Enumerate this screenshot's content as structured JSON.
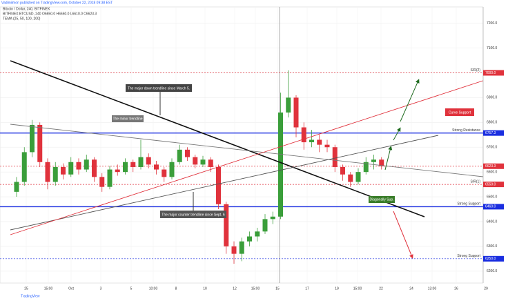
{
  "chart_data": {
    "type": "candlestick",
    "publisher": "Vadimilmon published on TradingView.com, October 22, 2018 09:38 EST",
    "title": "Bitcoin / Dollar, 240, BITFINEX",
    "subtitle": "BITFINEX:BTCUSD, 240  O6650.0  H6660.0  L6610.0  C6623.3",
    "indicator": "TEMA (25, 50, 100, 200)",
    "footer": "TradingView",
    "up_color": "#3a9e3a",
    "down_color": "#e0323c",
    "open": [
      6520,
      6560,
      6680,
      6790,
      6640,
      6560,
      6620,
      6590,
      6640,
      6610,
      6650,
      6580,
      6540,
      6610,
      6600,
      6640,
      6620,
      6660,
      6630,
      6610,
      6580,
      6640,
      6690,
      6660,
      6630,
      6650,
      6620,
      6470,
      6300,
      6270,
      6320,
      6340,
      6360,
      6410,
      6420,
      6840,
      6900,
      6780,
      6720,
      6730,
      6710,
      6700,
      6620,
      6590,
      6560,
      6600,
      6640,
      6650
    ],
    "high": [
      6580,
      6700,
      6810,
      6800,
      6655,
      6640,
      6635,
      6660,
      6655,
      6670,
      6660,
      6595,
      6625,
      6630,
      6655,
      6650,
      6730,
      6675,
      6645,
      6620,
      6655,
      6710,
      6700,
      6670,
      6665,
      6660,
      6630,
      6480,
      6320,
      6335,
      6360,
      6375,
      6430,
      6440,
      6920,
      7010,
      6910,
      6800,
      6770,
      6750,
      6730,
      6710,
      6630,
      6600,
      6615,
      6660,
      6670,
      6660
    ],
    "low": [
      6500,
      6545,
      6660,
      6620,
      6530,
      6545,
      6570,
      6580,
      6590,
      6600,
      6560,
      6520,
      6530,
      6585,
      6590,
      6600,
      6610,
      6615,
      6590,
      6560,
      6570,
      6630,
      6645,
      6615,
      6620,
      6600,
      6450,
      6270,
      6230,
      6240,
      6300,
      6320,
      6350,
      6390,
      6410,
      6820,
      6740,
      6690,
      6700,
      6680,
      6680,
      6600,
      6565,
      6540,
      6550,
      6590,
      6610,
      6610
    ],
    "close": [
      6560,
      6680,
      6790,
      6640,
      6560,
      6620,
      6590,
      6640,
      6610,
      6650,
      6580,
      6540,
      6610,
      6600,
      6640,
      6620,
      6660,
      6630,
      6610,
      6580,
      6640,
      6690,
      6660,
      6630,
      6650,
      6620,
      6470,
      6300,
      6270,
      6320,
      6340,
      6360,
      6410,
      6420,
      6840,
      6900,
      6780,
      6720,
      6730,
      6710,
      6700,
      6620,
      6590,
      6560,
      6600,
      6640,
      6650,
      6623.3
    ],
    "ylim": [
      6152,
      7266
    ],
    "yticks": [
      {
        "value": 6200,
        "label": "6200.0"
      },
      {
        "value": 6300,
        "label": "6300.0"
      },
      {
        "value": 6400,
        "label": "6400.0"
      },
      {
        "value": 6500,
        "label": "6500.0"
      },
      {
        "value": 6600,
        "label": "6600.0"
      },
      {
        "value": 6700,
        "label": "6700.0"
      },
      {
        "value": 6800,
        "label": "6800.0"
      },
      {
        "value": 6900,
        "label": "6900.0"
      },
      {
        "value": 7000,
        "label": "7000.0"
      },
      {
        "value": 7100,
        "label": "7100.0"
      },
      {
        "value": 7200,
        "label": "7200.0"
      }
    ],
    "xtick_labels": [
      "25",
      "15:00",
      "Oct",
      "3",
      "5",
      "10:00",
      "8",
      "10",
      "12",
      "15:00",
      "15",
      "17",
      "19",
      "15:00",
      "22",
      "24",
      "13:00",
      "26",
      "29"
    ],
    "levels": [
      {
        "value": 7000,
        "label": "7000.0",
        "color": "#e0323c",
        "name": "S/R(2)"
      },
      {
        "value": 6757.3,
        "label": "6757.3",
        "color": "#1a2ee0",
        "name": "Strong Resistance"
      },
      {
        "value": 6623.3,
        "label": "6623.3",
        "color": "#e0323c"
      },
      {
        "value": 6550,
        "label": "6550.0",
        "color": "#e0323c",
        "name": "S/R(1)"
      },
      {
        "value": 6460,
        "label": "6460.0",
        "color": "#1a2ee0",
        "name": "Strong Support"
      },
      {
        "value": 6250,
        "label": "6250.0",
        "color": "#1a2ee0",
        "name": "Strong Support"
      }
    ],
    "annotations": {
      "major_down": "The major down trendline since March 5.",
      "minor": "The minor trendline",
      "counter": "The major counter trendline since Sept. 6",
      "curve": "Curve Support",
      "diagonal": "Diagonally Sup."
    }
  }
}
